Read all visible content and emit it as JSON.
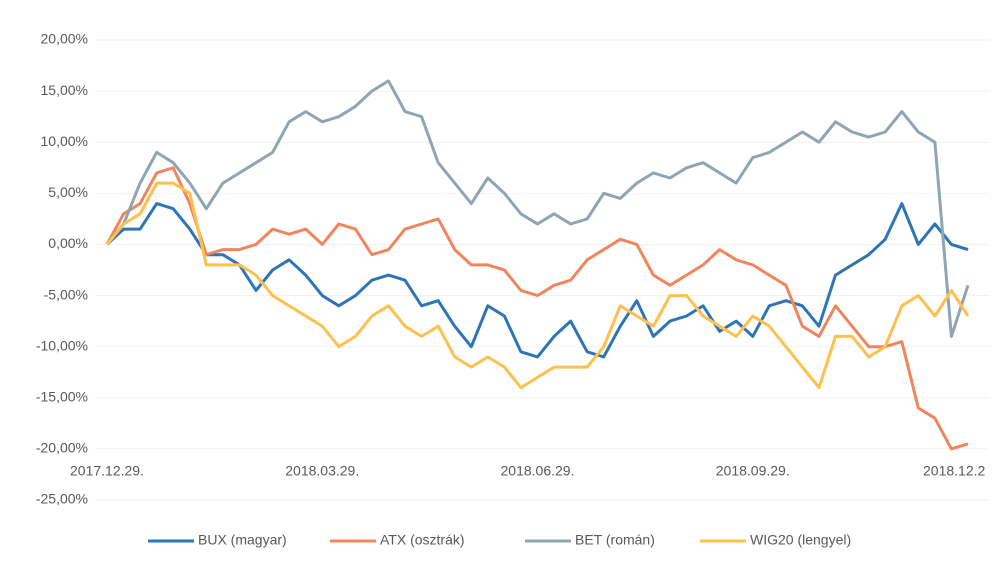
{
  "chart_data": {
    "type": "line",
    "categories": [
      "2017.12.29.",
      null,
      null,
      null,
      null,
      null,
      null,
      null,
      null,
      null,
      null,
      null,
      null,
      "2018.03.29.",
      null,
      null,
      null,
      null,
      null,
      null,
      null,
      null,
      null,
      null,
      null,
      null,
      "2018.06.29.",
      null,
      null,
      null,
      null,
      null,
      null,
      null,
      null,
      null,
      null,
      null,
      null,
      "2018.09.29.",
      null,
      null,
      null,
      null,
      null,
      null,
      null,
      null,
      null,
      null,
      null,
      null,
      "2018.12.2"
    ],
    "series": [
      {
        "name": "BUX (magyar)",
        "color": "#2e75b6",
        "values": [
          0,
          1.5,
          1.5,
          4,
          3.5,
          1.5,
          -1,
          -1,
          -2,
          -4.5,
          -2.5,
          -1.5,
          -3,
          -5,
          -6,
          -5,
          -3.5,
          -3,
          -3.5,
          -6,
          -5.5,
          -8,
          -10,
          -6,
          -7,
          -10.5,
          -11,
          -9,
          -7.5,
          -10.5,
          -11,
          -8,
          -5.5,
          -9,
          -7.5,
          -7,
          -6,
          -8.5,
          -7.5,
          -9,
          -6,
          -5.5,
          -6,
          -8,
          -3,
          -2,
          -1,
          0.5,
          4,
          0,
          2,
          0,
          -0.5
        ]
      },
      {
        "name": "ATX (osztrák)",
        "color": "#f0855e",
        "values": [
          0,
          3,
          4,
          7,
          7.5,
          4,
          -1,
          -0.5,
          -0.5,
          0,
          1.5,
          1,
          1.5,
          0,
          2,
          1.5,
          -1,
          -0.5,
          1.5,
          2,
          2.5,
          -0.5,
          -2,
          -2,
          -2.5,
          -4.5,
          -5,
          -4,
          -3.5,
          -1.5,
          -0.5,
          0.5,
          0,
          -3,
          -4,
          -3,
          -2,
          -0.5,
          -1.5,
          -2,
          -3,
          -4,
          -8,
          -9,
          -6,
          -8,
          -10,
          -10,
          -9.5,
          -16,
          -17,
          -20,
          -19.5
        ]
      },
      {
        "name": "BET (román)",
        "color": "#8fa5b3",
        "values": [
          0,
          2,
          6,
          9,
          8,
          6,
          3.5,
          6,
          7,
          8,
          9,
          12,
          13,
          12,
          12.5,
          13.5,
          15,
          16,
          13,
          12.5,
          8,
          6,
          4,
          6.5,
          5,
          3,
          2,
          3,
          2,
          2.5,
          5,
          4.5,
          6,
          7,
          6.5,
          7.5,
          8,
          7,
          6,
          8.5,
          9,
          10,
          11,
          10,
          12,
          11,
          10.5,
          11,
          13,
          11,
          10,
          -9,
          -4
        ]
      },
      {
        "name": "WIG20 (lengyel)",
        "color": "#ffc04d",
        "values": [
          0,
          2,
          3,
          6,
          6,
          5,
          -2,
          -2,
          -2,
          -3,
          -5,
          -6,
          -7,
          -8,
          -10,
          -9,
          -7,
          -6,
          -8,
          -9,
          -8,
          -11,
          -12,
          -11,
          -12,
          -14,
          -13,
          -12,
          -12,
          -12,
          -10,
          -6,
          -7,
          -8,
          -5,
          -5,
          -7,
          -8,
          -9,
          -7,
          -8,
          -10,
          -12,
          -14,
          -9,
          -9,
          -11,
          -10,
          -6,
          -5,
          -7,
          -4.5,
          -7
        ]
      }
    ],
    "ylim": [
      -25,
      20
    ],
    "yticks": [
      {
        "value": 20,
        "label": "20,00%"
      },
      {
        "value": 15,
        "label": "15,00%"
      },
      {
        "value": 10,
        "label": "10,00%"
      },
      {
        "value": 5,
        "label": "5,00%"
      },
      {
        "value": 0,
        "label": "0,00%"
      },
      {
        "value": -5,
        "label": "-5,00%"
      },
      {
        "value": -10,
        "label": "-10,00%"
      },
      {
        "value": -15,
        "label": "-15,00%"
      },
      {
        "value": -20,
        "label": "-20,00%"
      },
      {
        "value": -25,
        "label": "-25,00%"
      }
    ],
    "grid": true,
    "legend": "bottom"
  }
}
